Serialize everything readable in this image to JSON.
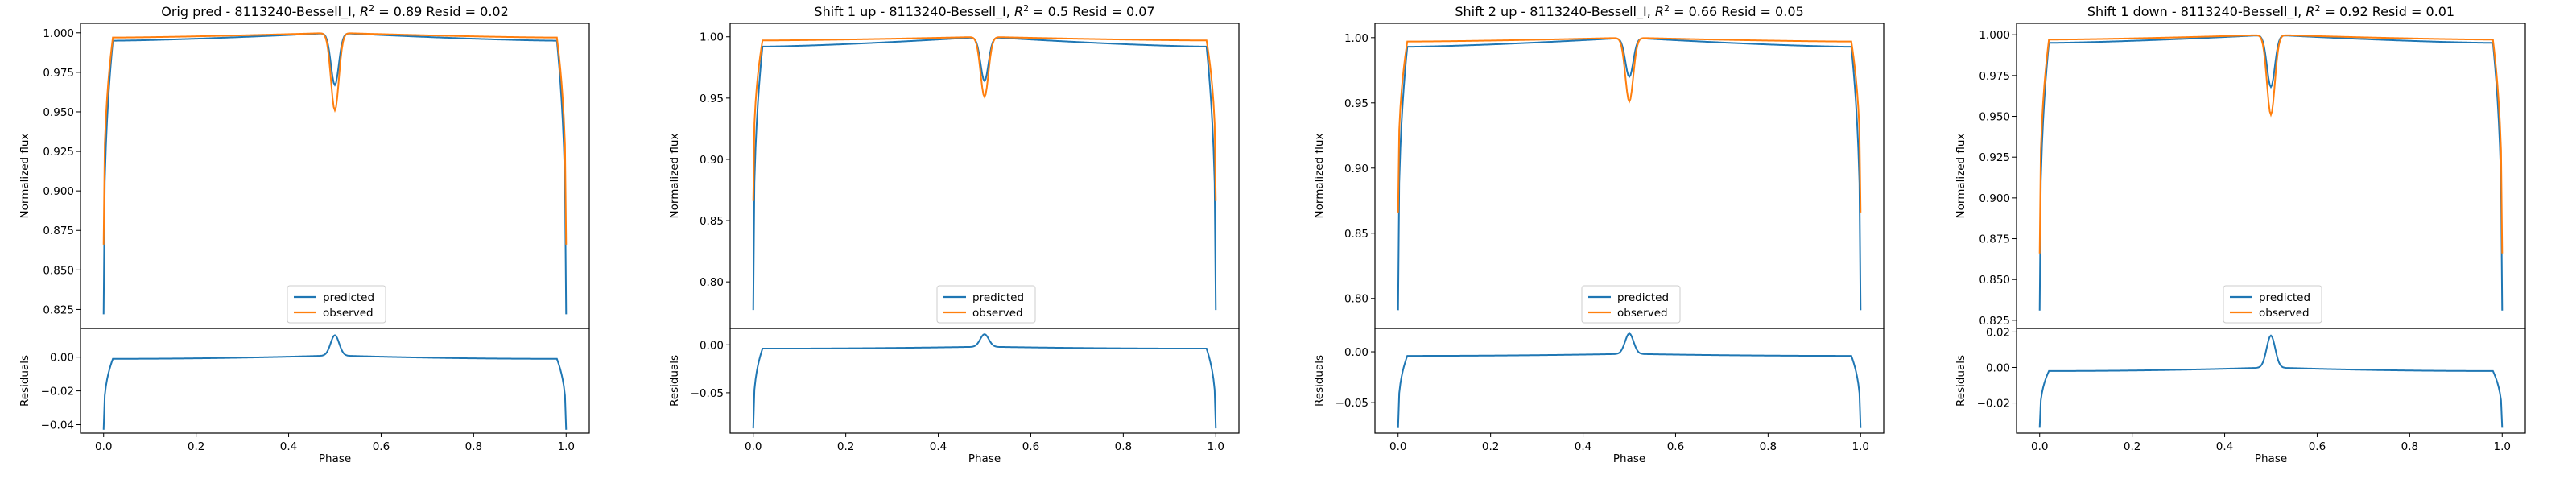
{
  "chart_data": [
    {
      "type": "line",
      "title_prefix": "Orig pred - 8113240-Bessell_I, ",
      "r2": "0.89",
      "resid": "0.02",
      "xlabel": "Phase",
      "ylabel_top": "Normalized flux",
      "ylabel_bottom": "Residuals",
      "xlim": [
        -0.05,
        1.05
      ],
      "ylim_top": [
        0.813,
        1.006
      ],
      "yticks_top": [
        0.825,
        0.85,
        0.875,
        0.9,
        0.925,
        0.95,
        0.975,
        1.0
      ],
      "ytick_labels_top": [
        "0.825",
        "0.850",
        "0.875",
        "0.900",
        "0.925",
        "0.950",
        "0.975",
        "1.000"
      ],
      "ylim_bottom": [
        -0.045,
        0.017
      ],
      "yticks_bottom": [
        -0.04,
        -0.02,
        0.0
      ],
      "ytick_labels_bottom": [
        "−0.04",
        "−0.02",
        "0.00"
      ],
      "xticks": [
        0.0,
        0.2,
        0.4,
        0.6,
        0.8,
        1.0
      ],
      "xtick_labels": [
        "0.0",
        "0.2",
        "0.4",
        "0.6",
        "0.8",
        "1.0"
      ],
      "predicted": {
        "edge": 0.822,
        "plateau_start": 0.995,
        "plateau_end": 0.995,
        "dip": 0.967
      },
      "observed": {
        "edge": 0.866,
        "plateau_start": 0.997,
        "plateau_end": 0.997,
        "dip": 0.951
      },
      "residual": {
        "edge": -0.043,
        "plateau": -0.001,
        "peak": 0.013
      },
      "legend": [
        "predicted",
        "observed"
      ]
    },
    {
      "type": "line",
      "title_prefix": "Shift 1 up - 8113240-Bessell_I, ",
      "r2": "0.5",
      "resid": "0.07",
      "xlabel": "Phase",
      "ylabel_top": "Normalized flux",
      "ylabel_bottom": "Residuals",
      "xlim": [
        -0.05,
        1.05
      ],
      "ylim_top": [
        0.762,
        1.011
      ],
      "yticks_top": [
        0.8,
        0.85,
        0.9,
        0.95,
        1.0
      ],
      "ytick_labels_top": [
        "0.80",
        "0.85",
        "0.90",
        "0.95",
        "1.00"
      ],
      "ylim_bottom": [
        -0.092,
        0.017
      ],
      "yticks_bottom": [
        -0.05,
        0.0
      ],
      "ytick_labels_bottom": [
        "−0.05",
        "0.00"
      ],
      "xticks": [
        0.0,
        0.2,
        0.4,
        0.6,
        0.8,
        1.0
      ],
      "xtick_labels": [
        "0.0",
        "0.2",
        "0.4",
        "0.6",
        "0.8",
        "1.0"
      ],
      "predicted": {
        "edge": 0.777,
        "plateau_start": 0.992,
        "plateau_end": 0.992,
        "dip": 0.964
      },
      "observed": {
        "edge": 0.866,
        "plateau_start": 0.997,
        "plateau_end": 0.997,
        "dip": 0.951
      },
      "residual": {
        "edge": -0.087,
        "plateau": -0.004,
        "peak": 0.011
      },
      "legend": [
        "predicted",
        "observed"
      ]
    },
    {
      "type": "line",
      "title_prefix": "Shift 2 up - 8113240-Bessell_I, ",
      "r2": "0.66",
      "resid": "0.05",
      "xlabel": "Phase",
      "ylabel_top": "Normalized flux",
      "ylabel_bottom": "Residuals",
      "xlim": [
        -0.05,
        1.05
      ],
      "ylim_top": [
        0.777,
        1.011
      ],
      "yticks_top": [
        0.8,
        0.85,
        0.9,
        0.95,
        1.0
      ],
      "ytick_labels_top": [
        "0.80",
        "0.85",
        "0.90",
        "0.95",
        "1.00"
      ],
      "ylim_bottom": [
        -0.08,
        0.023
      ],
      "yticks_bottom": [
        -0.05,
        0.0
      ],
      "ytick_labels_bottom": [
        "−0.05",
        "0.00"
      ],
      "xticks": [
        0.0,
        0.2,
        0.4,
        0.6,
        0.8,
        1.0
      ],
      "xtick_labels": [
        "0.0",
        "0.2",
        "0.4",
        "0.6",
        "0.8",
        "1.0"
      ],
      "predicted": {
        "edge": 0.791,
        "plateau_start": 0.993,
        "plateau_end": 0.993,
        "dip": 0.97
      },
      "observed": {
        "edge": 0.866,
        "plateau_start": 0.997,
        "plateau_end": 0.997,
        "dip": 0.951
      },
      "residual": {
        "edge": -0.075,
        "plateau": -0.004,
        "peak": 0.018
      },
      "legend": [
        "predicted",
        "observed"
      ]
    },
    {
      "type": "line",
      "title_prefix": "Shift 1 down - 8113240-Bessell_I, ",
      "r2": "0.92",
      "resid": "0.01",
      "xlabel": "Phase",
      "ylabel_top": "Normalized flux",
      "ylabel_bottom": "Residuals",
      "xlim": [
        -0.05,
        1.05
      ],
      "ylim_top": [
        0.82,
        1.007
      ],
      "yticks_top": [
        0.825,
        0.85,
        0.875,
        0.9,
        0.925,
        0.95,
        0.975,
        1.0
      ],
      "ytick_labels_top": [
        "0.825",
        "0.850",
        "0.875",
        "0.900",
        "0.925",
        "0.950",
        "0.975",
        "1.000"
      ],
      "ylim_bottom": [
        -0.037,
        0.022
      ],
      "yticks_bottom": [
        -0.02,
        0.0,
        0.02
      ],
      "ytick_labels_bottom": [
        "−0.02",
        "0.00",
        "0.02"
      ],
      "xticks": [
        0.0,
        0.2,
        0.4,
        0.6,
        0.8,
        1.0
      ],
      "xtick_labels": [
        "0.0",
        "0.2",
        "0.4",
        "0.6",
        "0.8",
        "1.0"
      ],
      "predicted": {
        "edge": 0.831,
        "plateau_start": 0.995,
        "plateau_end": 0.995,
        "dip": 0.968
      },
      "observed": {
        "edge": 0.866,
        "plateau_start": 0.997,
        "plateau_end": 0.997,
        "dip": 0.951
      },
      "residual": {
        "edge": -0.034,
        "plateau": -0.002,
        "peak": 0.018
      },
      "legend": [
        "predicted",
        "observed"
      ]
    }
  ],
  "colors": {
    "predicted": "#1f77b4",
    "observed": "#ff7f0e",
    "axes": "#000000"
  }
}
